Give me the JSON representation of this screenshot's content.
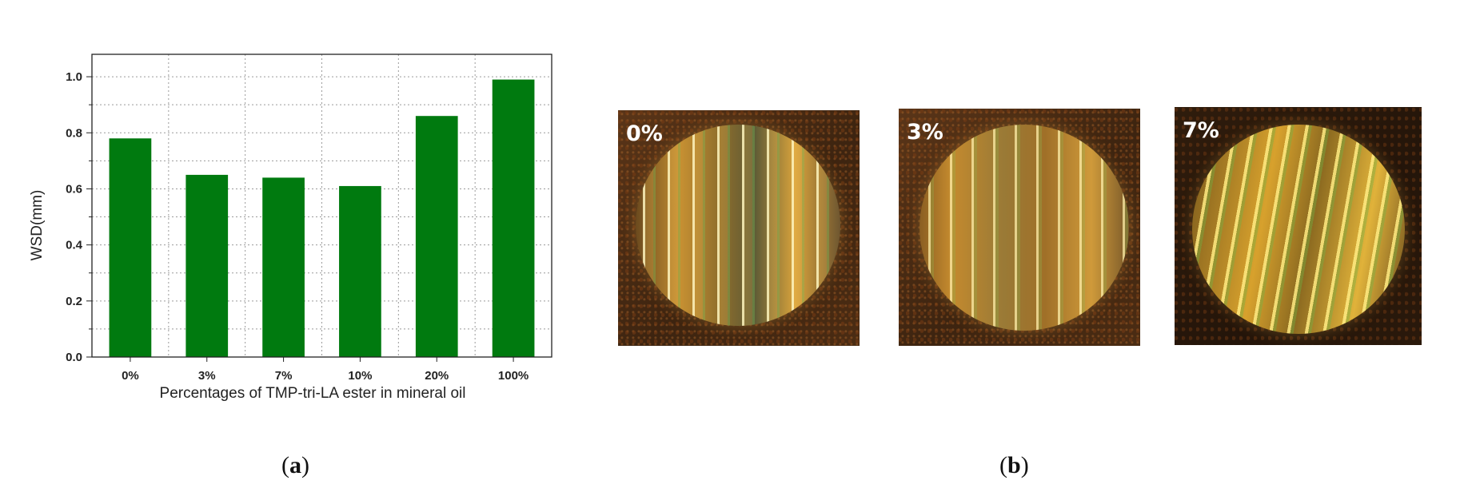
{
  "chart_data": {
    "type": "bar",
    "categories": [
      "0%",
      "3%",
      "7%",
      "10%",
      "20%",
      "100%"
    ],
    "values": [
      0.78,
      0.65,
      0.64,
      0.61,
      0.86,
      0.99
    ],
    "xlabel": "Percentages of TMP-tri-LA ester in mineral oil",
    "ylabel": "WSD(mm)",
    "ylim": [
      0.0,
      1.08
    ],
    "yticks": [
      "0.0",
      "0.2",
      "0.4",
      "0.6",
      "0.8",
      "1.0"
    ],
    "grid": true,
    "bar_color": "#007a0f"
  },
  "panel_labels": {
    "a": "a",
    "b": "b"
  },
  "photos": [
    {
      "label": "0%"
    },
    {
      "label": "3%"
    },
    {
      "label": "7%"
    }
  ]
}
